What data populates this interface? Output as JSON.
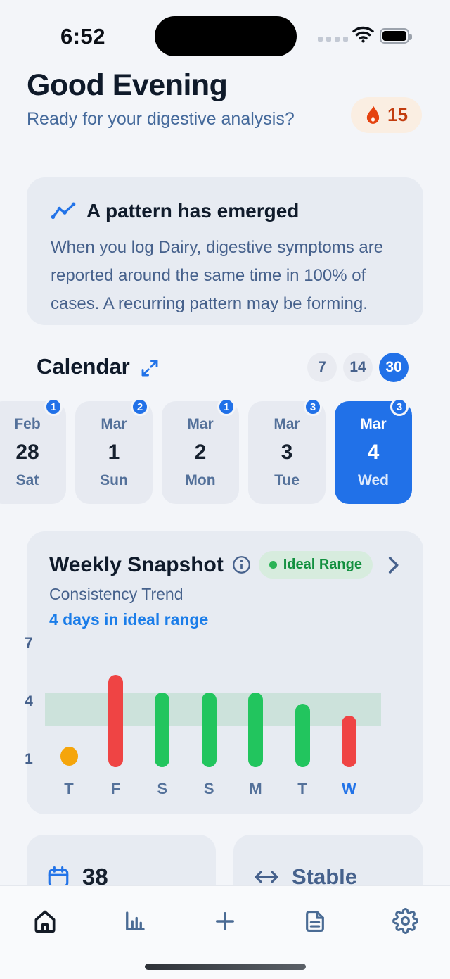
{
  "colors": {
    "accent_blue": "#2171E8",
    "ideal_green": "#22C55E",
    "alert_red": "#EF4444",
    "warn_orange": "#F5A50B",
    "muted_blue_text": "#46618C",
    "card_bg": "#E7EBF2",
    "page_bg": "#F3F5F9",
    "streak_orange": "#C23C0E"
  },
  "status_bar": {
    "time": "6:52",
    "icons": [
      "cellular-dots-icon",
      "wifi-icon",
      "battery-icon"
    ]
  },
  "header": {
    "greeting": "Good Evening",
    "subtitle": "Ready for your digestive analysis?",
    "streak": {
      "icon": "flame-icon",
      "count": "15"
    }
  },
  "pattern_card": {
    "icon": "trend-line-icon",
    "title": "A pattern has emerged",
    "body": "When you log Dairy, digestive symptoms are reported around the same time in 100% of cases. A recurring pattern may be forming."
  },
  "calendar": {
    "title": "Calendar",
    "expand_icon": "expand-diagonal-icon",
    "range_options": [
      {
        "label": "7",
        "selected": false
      },
      {
        "label": "14",
        "selected": false
      },
      {
        "label": "30",
        "selected": true
      }
    ],
    "days": [
      {
        "month": "Feb",
        "day": "28",
        "weekday": "Sat",
        "badge": "1",
        "selected": false
      },
      {
        "month": "Mar",
        "day": "1",
        "weekday": "Sun",
        "badge": "2",
        "selected": false
      },
      {
        "month": "Mar",
        "day": "2",
        "weekday": "Mon",
        "badge": "1",
        "selected": false
      },
      {
        "month": "Mar",
        "day": "3",
        "weekday": "Tue",
        "badge": "3",
        "selected": false
      },
      {
        "month": "Mar",
        "day": "4",
        "weekday": "Wed",
        "badge": "3",
        "selected": true
      }
    ]
  },
  "weekly_snapshot": {
    "title": "Weekly Snapshot",
    "info_icon": "info-icon",
    "legend_label": "Ideal Range",
    "chevron_icon": "chevron-right-icon",
    "subtitle": "Consistency Trend",
    "highlight": "4 days in ideal range",
    "chart_data": {
      "type": "bar",
      "title": "Consistency Trend",
      "categories": [
        "T",
        "F",
        "S",
        "S",
        "M",
        "T",
        "W"
      ],
      "points": [
        {
          "type": "dot",
          "value": 1.2,
          "color": "#F5A50B"
        },
        {
          "type": "bar",
          "low": 1,
          "high": 5.4,
          "color": "#EF4444"
        },
        {
          "type": "bar",
          "low": 1,
          "high": 4.5,
          "color": "#22C55E"
        },
        {
          "type": "bar",
          "low": 1,
          "high": 4.5,
          "color": "#22C55E"
        },
        {
          "type": "bar",
          "low": 1,
          "high": 4.5,
          "color": "#22C55E"
        },
        {
          "type": "bar",
          "low": 1,
          "high": 3.9,
          "color": "#22C55E"
        },
        {
          "type": "bar",
          "low": 1,
          "high": 3.3,
          "color": "#EF4444"
        }
      ],
      "ideal_band": [
        2.75,
        4.5
      ],
      "yticks": [
        7,
        4,
        1
      ],
      "ylim": [
        0.5,
        7.5
      ],
      "grid": false,
      "legend": "Ideal Range",
      "legend_position": "top-right",
      "highlighted_index": 6
    }
  },
  "stat_cards": [
    {
      "icon": "calendar-icon",
      "value": "38"
    },
    {
      "icon": "left-right-arrow-icon",
      "value": "Stable"
    }
  ],
  "nav": {
    "items": [
      {
        "icon": "home-icon",
        "active": true
      },
      {
        "icon": "bar-chart-icon",
        "active": false
      },
      {
        "icon": "plus-icon",
        "active": false
      },
      {
        "icon": "note-icon",
        "active": false
      },
      {
        "icon": "gear-icon",
        "active": false
      }
    ]
  }
}
